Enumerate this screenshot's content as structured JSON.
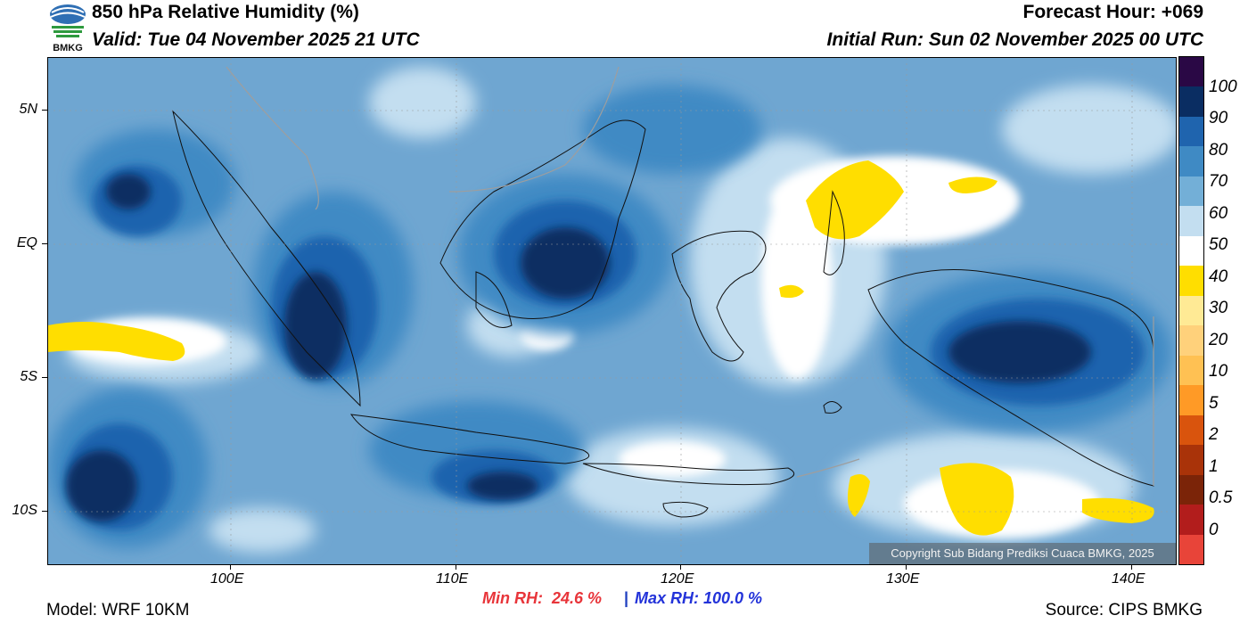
{
  "header": {
    "title": "850 hPa Relative Humidity (%)",
    "valid": "Valid: Tue 04 November 2025 21 UTC",
    "forecast_hour": "Forecast Hour: +069",
    "initial_run": "Initial Run: Sun 02 November 2025 00 UTC",
    "logo_text": "BMKG"
  },
  "axes": {
    "lat_labels": [
      "5N",
      "EQ",
      "5S",
      "10S"
    ],
    "lon_labels": [
      "100E",
      "110E",
      "120E",
      "130E",
      "140E"
    ]
  },
  "colorbar": {
    "labels": [
      "100",
      "90",
      "80",
      "70",
      "60",
      "50",
      "40",
      "30",
      "20",
      "10",
      "5",
      "2",
      "1",
      "0.5",
      "0"
    ],
    "colors": [
      "#2a0845",
      "#0a2d62",
      "#1f64ae",
      "#3f8ac4",
      "#73afd7",
      "#c3def0",
      "#ffffff",
      "#ffde00",
      "#ffea95",
      "#ffd17b",
      "#ffc153",
      "#ff9a26",
      "#d9540d",
      "#a93309",
      "#7b2408",
      "#b21d1c",
      "#e84439"
    ]
  },
  "stats": {
    "min_rh": "Min RH:  24.6 %",
    "separator": "|",
    "max_rh": "Max RH: 100.0 %"
  },
  "footer": {
    "model": "Model: WRF 10KM",
    "source": "Source: CIPS BMKG",
    "copyright": "Copyright Sub Bidang Prediksi Cuaca BMKG, 2025"
  }
}
